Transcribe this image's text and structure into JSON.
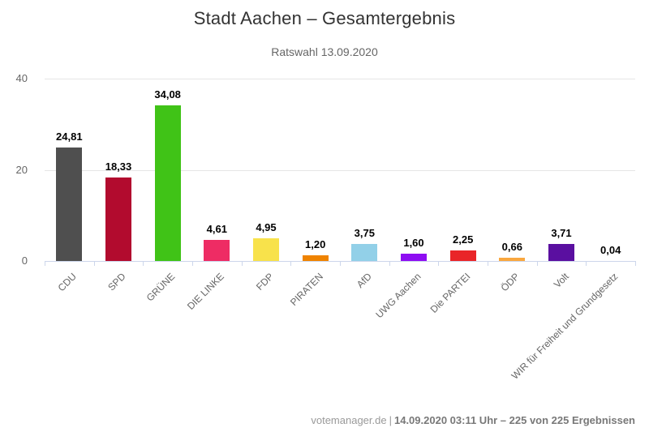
{
  "title": "Stadt Aachen – Gesamtergebnis",
  "subtitle": "Ratswahl 13.09.2020",
  "footer": {
    "source": "votemanager.de",
    "separator": "|",
    "status": "14.09.2020 03:11 Uhr – 225 von 225 Ergebnissen"
  },
  "chart_data": {
    "type": "bar",
    "title": "Stadt Aachen – Gesamtergebnis",
    "subtitle": "Ratswahl 13.09.2020",
    "categories": [
      "CDU",
      "SPD",
      "GRÜNE",
      "DIE LINKE",
      "FDP",
      "PIRATEN",
      "AfD",
      "UWG Aachen",
      "Die PARTEI",
      "ÖDP",
      "Volt",
      "WIR für Freiheit und Grundgesetz"
    ],
    "values": [
      24.81,
      18.33,
      34.08,
      4.61,
      4.95,
      1.2,
      3.75,
      1.6,
      2.25,
      0.66,
      3.71,
      0.04
    ],
    "value_labels": [
      "24,81",
      "18,33",
      "34,08",
      "4,61",
      "4,95",
      "1,20",
      "3,75",
      "1,60",
      "2,25",
      "0,66",
      "3,71",
      "0,04"
    ],
    "colors": [
      "#4f4f4f",
      "#b20b2e",
      "#40c317",
      "#ee2c64",
      "#f8e24b",
      "#ef8300",
      "#92d0e8",
      "#8e0df2",
      "#e92528",
      "#f9a73f",
      "#5a0fa0",
      "#cccccc"
    ],
    "xlabel": "",
    "ylabel": "",
    "ylim": [
      0,
      40
    ],
    "yticks": [
      0,
      20,
      40
    ],
    "grid": true,
    "legend": "none",
    "gridline_color": "#e6e6e6",
    "axis_color": "#ccd6eb",
    "label_color": "#666666"
  }
}
